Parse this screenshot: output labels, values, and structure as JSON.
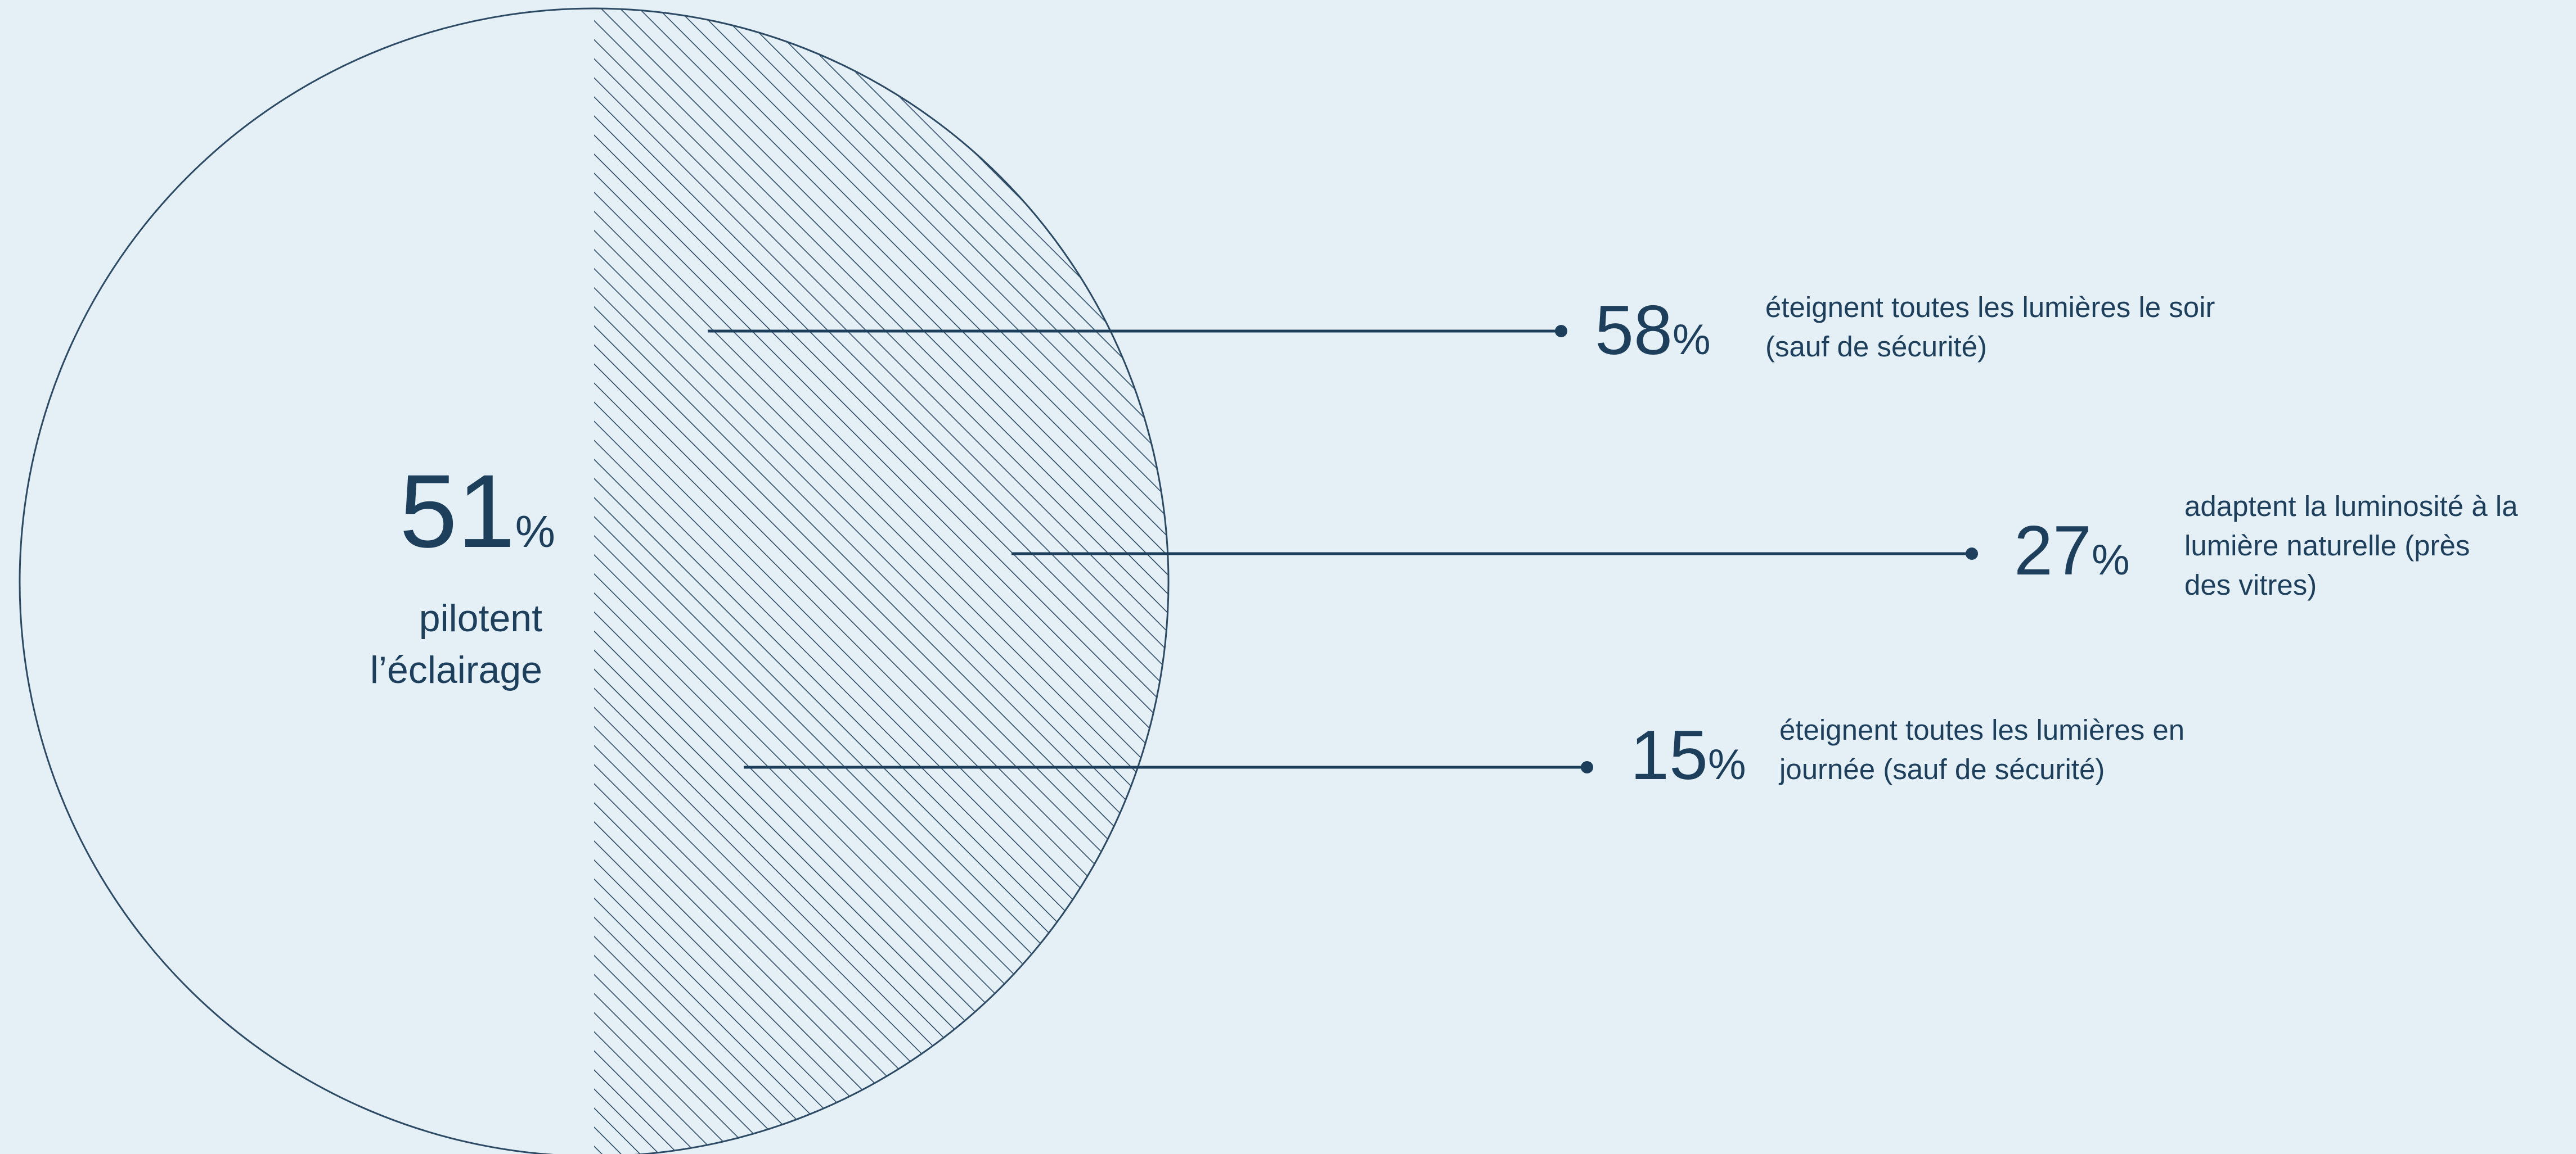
{
  "chart_data": {
    "type": "pie",
    "main": {
      "value": 51,
      "unit": "%",
      "label_line1": "pilotent",
      "label_line2": "l’éclairage"
    },
    "breakdown": [
      {
        "value": 58,
        "unit": "%",
        "label_line1": "éteignent toutes les lumières le soir",
        "label_line2": "(sauf de sécurité)"
      },
      {
        "value": 27,
        "unit": "%",
        "label_line1": "adaptent la luminosité à la",
        "label_line2": "lumière naturelle (près",
        "label_line3": "des vitres)"
      },
      {
        "value": 15,
        "unit": "%",
        "label_line1": "éteignent toutes les lumières en",
        "label_line2": "journée (sauf de sécurité)"
      }
    ]
  },
  "colors": {
    "background": "#e4eff6",
    "ink": "#1d3f5c",
    "hatch": "#2c4a63"
  }
}
